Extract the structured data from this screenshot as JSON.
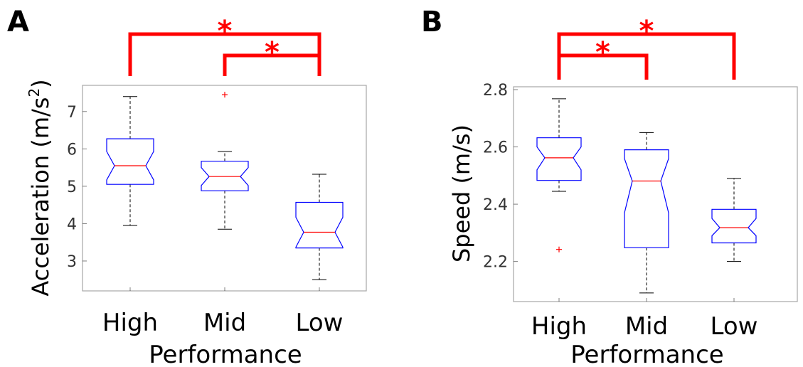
{
  "colors": {
    "box": "#0000ff",
    "median": "#ff0000",
    "whisker": "#000000",
    "outlier": "#ff0000",
    "significance": "#ff0000",
    "axis": "#000000"
  },
  "chart_data": [
    {
      "panel_label": "A",
      "type": "box",
      "notched": true,
      "xlabel": "Performance",
      "ylabel": "Acceleration (m/s",
      "ylabel_superscript": "2",
      "ylabel_close": ")",
      "ylim": [
        2.2,
        7.7
      ],
      "yticks": [
        3,
        4,
        5,
        6,
        7
      ],
      "ytick_labels": [
        "3",
        "4",
        "5",
        "6",
        "7"
      ],
      "categories": [
        "High",
        "Mid",
        "Low"
      ],
      "boxes": [
        {
          "category": "High",
          "whisker_low": 3.95,
          "q1": 5.05,
          "median": 5.55,
          "q3": 6.27,
          "whisker_high": 7.4,
          "notch_low": 5.17,
          "notch_high": 5.93,
          "outliers": []
        },
        {
          "category": "Mid",
          "whisker_low": 3.85,
          "q1": 4.88,
          "median": 5.26,
          "q3": 5.67,
          "whisker_high": 5.93,
          "notch_low": 5.02,
          "notch_high": 5.5,
          "outliers": [
            7.45
          ]
        },
        {
          "category": "Low",
          "whisker_low": 2.5,
          "q1": 3.35,
          "median": 3.77,
          "q3": 4.57,
          "whisker_high": 5.32,
          "notch_low": 3.37,
          "notch_high": 4.17,
          "outliers": []
        }
      ],
      "significance": [
        {
          "from": "High",
          "to": "Low",
          "label": "*"
        },
        {
          "from": "Mid",
          "to": "Low",
          "label": "*"
        }
      ]
    },
    {
      "panel_label": "B",
      "type": "box",
      "notched": true,
      "xlabel": "Performance",
      "ylabel": "Speed (m/s)",
      "ylim": [
        2.06,
        2.81
      ],
      "yticks": [
        2.2,
        2.4,
        2.6,
        2.8
      ],
      "ytick_labels": [
        "2.2",
        "2.4",
        "2.6",
        "2.8"
      ],
      "categories": [
        "High",
        "Mid",
        "Low"
      ],
      "boxes": [
        {
          "category": "High",
          "whisker_low": 2.445,
          "q1": 2.483,
          "median": 2.562,
          "q3": 2.632,
          "whisker_high": 2.768,
          "notch_low": 2.52,
          "notch_high": 2.6,
          "outliers": [
            2.242
          ]
        },
        {
          "category": "Mid",
          "whisker_low": 2.09,
          "q1": 2.248,
          "median": 2.481,
          "q3": 2.59,
          "whisker_high": 2.65,
          "notch_low": 2.37,
          "notch_high": 2.559,
          "outliers": []
        },
        {
          "category": "Low",
          "whisker_low": 2.2,
          "q1": 2.265,
          "median": 2.318,
          "q3": 2.382,
          "whisker_high": 2.49,
          "notch_low": 2.29,
          "notch_high": 2.35,
          "outliers": []
        }
      ],
      "significance": [
        {
          "from": "High",
          "to": "Mid",
          "label": "*"
        },
        {
          "from": "High",
          "to": "Low",
          "label": "*"
        }
      ]
    }
  ]
}
